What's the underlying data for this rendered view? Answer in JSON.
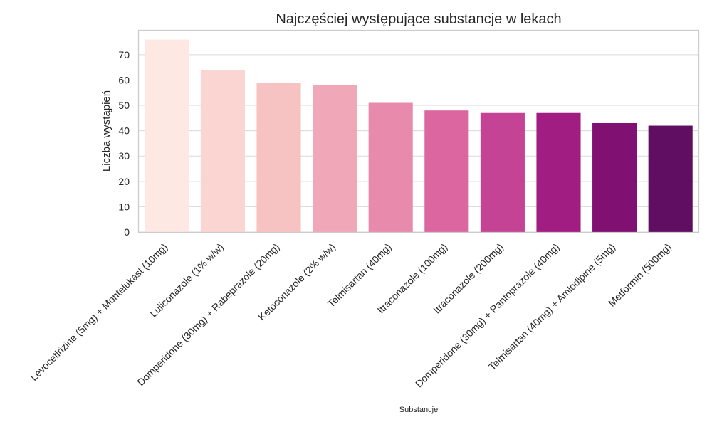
{
  "chart_data": {
    "type": "bar",
    "title": "Najczęściej występujące substancje w lekach",
    "xlabel": "Substancje",
    "ylabel": "Liczba wystąpień",
    "ylim": [
      0,
      79.8
    ],
    "yticks": [
      0,
      10,
      20,
      30,
      40,
      50,
      60,
      70
    ],
    "grid": true,
    "legend": "none",
    "categories": [
      "Levocetirizine (5mg) + Montelukast (10mg)",
      "Luliconazole (1% w/w)",
      "Domperidone (30mg) + Rabeprazole (20mg)",
      "Ketoconazole (2% w/w)",
      "Telmisartan (40mg)",
      "Itraconazole (100mg)",
      "Itraconazole (200mg)",
      "Domperidone (30mg) + Pantoprazole (40mg)",
      "Telmisartan (40mg) + Amlodipine (5mg)",
      "Metformin (500mg)"
    ],
    "values": [
      76,
      64,
      59,
      58,
      51,
      48,
      47,
      47,
      43,
      42
    ],
    "colors": [
      "#fde8e4",
      "#fad5d1",
      "#f6c2c2",
      "#f0a8b8",
      "#e88aab",
      "#dc67a0",
      "#c44394",
      "#a21d82",
      "#801173",
      "#600e62"
    ]
  }
}
